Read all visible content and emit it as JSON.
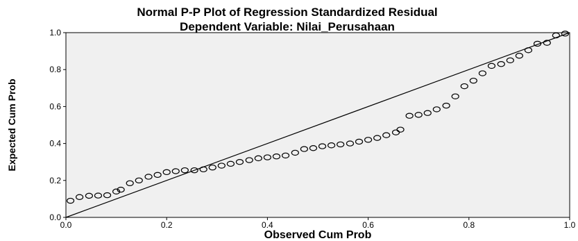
{
  "chart_data": {
    "type": "scatter",
    "title": "Normal P-P Plot of Regression Standardized Residual",
    "subtitle": "Dependent Variable: Nilai_Perusahaan",
    "xlabel": "Observed Cum Prob",
    "ylabel": "Expected Cum Prob",
    "xlim": [
      0,
      1
    ],
    "ylim": [
      0,
      1
    ],
    "x_ticks": [
      "0.0",
      "0.2",
      "0.4",
      "0.6",
      "0.8",
      "1.0"
    ],
    "y_ticks": [
      "0.0",
      "0.2",
      "0.4",
      "0.6",
      "0.8",
      "1.0"
    ],
    "grid": false,
    "legend": "none",
    "reference_line": {
      "from": [
        0,
        0
      ],
      "to": [
        1,
        1
      ]
    },
    "points": {
      "x": [
        0.009,
        0.027,
        0.046,
        0.064,
        0.082,
        0.1,
        0.109,
        0.127,
        0.145,
        0.164,
        0.182,
        0.2,
        0.218,
        0.236,
        0.255,
        0.273,
        0.291,
        0.309,
        0.327,
        0.345,
        0.364,
        0.382,
        0.4,
        0.418,
        0.436,
        0.455,
        0.473,
        0.491,
        0.509,
        0.527,
        0.545,
        0.564,
        0.582,
        0.6,
        0.618,
        0.636,
        0.655,
        0.664,
        0.682,
        0.7,
        0.718,
        0.736,
        0.755,
        0.773,
        0.791,
        0.809,
        0.827,
        0.845,
        0.864,
        0.882,
        0.9,
        0.918,
        0.936,
        0.955,
        0.973,
        0.991
      ],
      "y": [
        0.09,
        0.11,
        0.117,
        0.118,
        0.12,
        0.14,
        0.15,
        0.185,
        0.2,
        0.22,
        0.23,
        0.245,
        0.25,
        0.255,
        0.255,
        0.26,
        0.27,
        0.28,
        0.29,
        0.3,
        0.31,
        0.32,
        0.325,
        0.33,
        0.335,
        0.35,
        0.37,
        0.375,
        0.385,
        0.39,
        0.395,
        0.4,
        0.41,
        0.42,
        0.43,
        0.445,
        0.46,
        0.475,
        0.55,
        0.555,
        0.565,
        0.585,
        0.605,
        0.655,
        0.71,
        0.74,
        0.78,
        0.82,
        0.83,
        0.85,
        0.875,
        0.905,
        0.94,
        0.945,
        0.985,
        0.995
      ]
    }
  },
  "colors": {
    "plot_background": "#f0f0f0",
    "plot_border": "#000000",
    "marker_stroke": "#000000",
    "line": "#000000"
  }
}
